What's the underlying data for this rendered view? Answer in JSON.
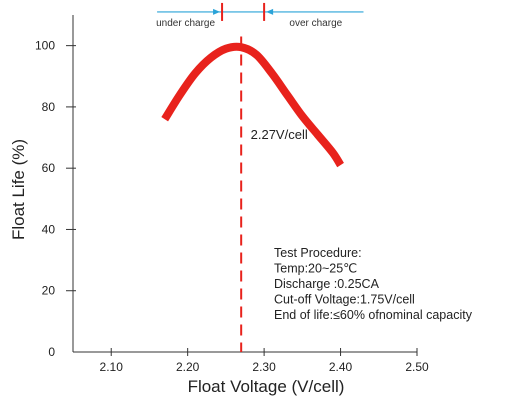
{
  "chart_data": {
    "type": "line",
    "title": "",
    "xlabel": "Float Voltage (V/cell)",
    "ylabel": "Float Life (%)",
    "xlim": [
      2.05,
      2.5
    ],
    "ylim": [
      0,
      110
    ],
    "x_ticks": [
      "2.10",
      "2.20",
      "2.30",
      "2.40",
      "2.50"
    ],
    "y_ticks": [
      "0",
      "20",
      "40",
      "60",
      "80",
      "100"
    ],
    "x_tick_values": [
      2.1,
      2.2,
      2.3,
      2.4,
      2.5
    ],
    "y_tick_values": [
      0,
      20,
      40,
      60,
      80,
      100
    ],
    "grid": false,
    "series": [
      {
        "color": "#e8221c",
        "x": [
          2.17,
          2.19,
          2.21,
          2.23,
          2.25,
          2.27,
          2.29,
          2.31,
          2.33,
          2.35,
          2.37,
          2.39,
          2.4
        ],
        "y": [
          76,
          84,
          91,
          96,
          99,
          99.5,
          97,
          91,
          84,
          77,
          71,
          65,
          61
        ]
      }
    ],
    "optimum_line": {
      "x": 2.27,
      "label": "2.27V/cell",
      "color": "#e8221c"
    },
    "charge_band": {
      "under_label": "under charge",
      "over_label": "over charge",
      "x_start": 2.16,
      "x_end": 2.43,
      "low_mark": 2.245,
      "high_mark": 2.3,
      "y": 111,
      "color": "#2aa3d8"
    },
    "annotations": [
      "Test Procedure:",
      "Temp:20~25℃",
      "Discharge :0.25CA",
      "Cut-off Voltage:1.75V/cell",
      "End of life:≤60% ofnominal capacity"
    ]
  }
}
